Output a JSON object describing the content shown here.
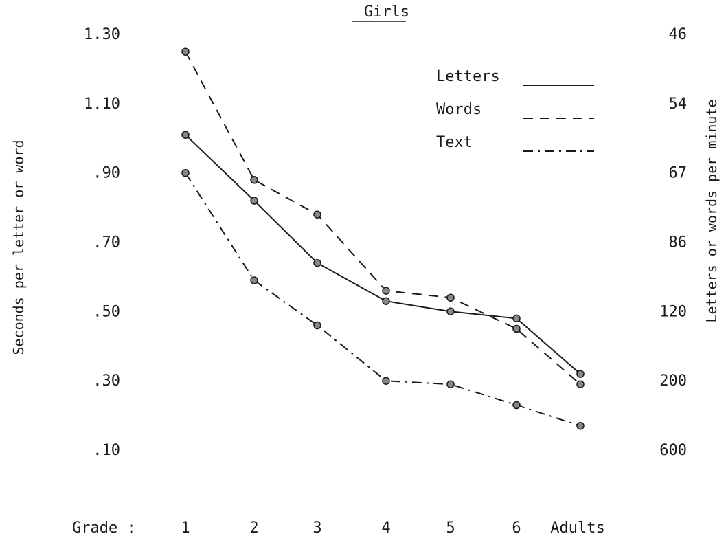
{
  "chart_data": {
    "type": "line",
    "title": "Girls",
    "xlabel": "Grade :",
    "ylabel": "Seconds per letter or word",
    "ylabel_right": "Letters or words per minute",
    "categories": [
      "1",
      "2",
      "3",
      "4",
      "5",
      "6",
      "Adults"
    ],
    "y_ticks": [
      ".10",
      ".30",
      ".50",
      ".70",
      ".90",
      "1.10",
      "1.30"
    ],
    "y_ticks_right": [
      "600",
      "200",
      "120",
      "86",
      "67",
      "54",
      "46"
    ],
    "ylim": [
      0.1,
      1.3
    ],
    "grid": false,
    "legend_position": "top-right",
    "series": [
      {
        "name": "Letters",
        "dash": "solid",
        "values": [
          1.01,
          0.82,
          0.64,
          0.53,
          0.5,
          0.48,
          0.32
        ]
      },
      {
        "name": "Words",
        "dash": "dashed",
        "values": [
          1.25,
          0.88,
          0.78,
          0.56,
          0.54,
          0.45,
          0.29
        ]
      },
      {
        "name": "Text",
        "dash": "dashdot",
        "values": [
          0.9,
          0.59,
          0.46,
          0.3,
          0.29,
          0.23,
          0.17
        ]
      }
    ]
  }
}
